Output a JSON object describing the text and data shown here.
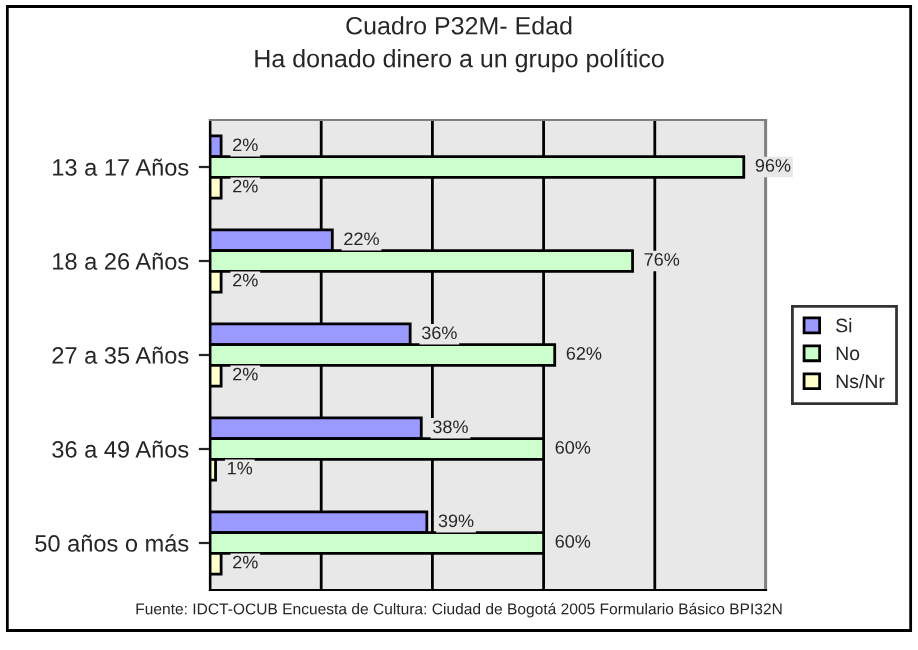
{
  "chart_data": {
    "type": "bar",
    "orientation": "horizontal",
    "title": "Cuadro P32M- Edad\nHa donado dinero a un grupo político",
    "categories": [
      "13 a 17 Años",
      "18 a 26 Años",
      "27 a 35 Años",
      "36 a 49 Años",
      "50 años o más"
    ],
    "series": [
      {
        "name": "Si",
        "color": "#9999ff",
        "values": [
          2,
          22,
          36,
          38,
          39
        ],
        "value_labels": [
          "2%",
          "22%",
          "36%",
          "38%",
          "39%"
        ]
      },
      {
        "name": "No",
        "color": "#ccffcc",
        "values": [
          96,
          76,
          62,
          60,
          60
        ],
        "value_labels": [
          "96%",
          "76%",
          "62%",
          "60%",
          "60%"
        ]
      },
      {
        "name": "Ns/Nr",
        "color": "#ffffcc",
        "values": [
          2,
          2,
          2,
          1,
          2
        ],
        "value_labels": [
          "2%",
          "2%",
          "2%",
          "1%",
          "2%"
        ]
      }
    ],
    "xlim": [
      0,
      100
    ],
    "xticks": [
      {
        "value": 0,
        "label": null
      },
      {
        "value": 20,
        "label": null
      },
      {
        "value": 40,
        "label": null
      },
      {
        "value": 60,
        "label": null
      },
      {
        "value": 80,
        "label": null
      },
      {
        "value": 100,
        "label": null
      }
    ],
    "grid": "x",
    "legend": "right",
    "tick_labels": "y",
    "annotations": [
      "Fuente: IDCT-OCUB Encuesta de Cultura: Ciudad de Bogotá 2005 Formulario Básico BPI32N"
    ]
  }
}
